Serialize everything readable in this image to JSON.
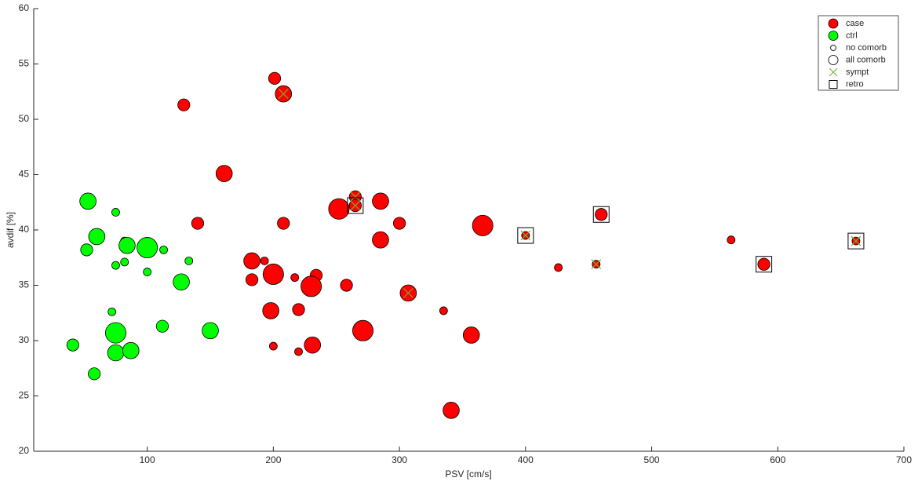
{
  "chart_data": {
    "type": "scatter",
    "xlabel": "PSV [cm/s]",
    "ylabel": "avdif [%]",
    "xlim": [
      10,
      700
    ],
    "ylim": [
      20,
      60
    ],
    "xticks": [
      100,
      200,
      300,
      400,
      500,
      600,
      700
    ],
    "yticks": [
      20,
      25,
      30,
      35,
      40,
      45,
      50,
      55,
      60
    ],
    "size_labels": [
      "no comorb",
      "all comorb"
    ],
    "series": [
      {
        "name": "case",
        "color": "#ff0000",
        "marker": "circle",
        "x": [
          201,
          208,
          129,
          161,
          265,
          285,
          252,
          265,
          140,
          208,
          300,
          366,
          460,
          400,
          285,
          563,
          662,
          183,
          193,
          426,
          456,
          589,
          200,
          183,
          217,
          234,
          230,
          258,
          307,
          198,
          220,
          335,
          271,
          357,
          231,
          200,
          220,
          341
        ],
        "values": [
          53.7,
          52.3,
          51.3,
          45.1,
          43.0,
          42.6,
          41.9,
          42.2,
          40.6,
          40.6,
          40.6,
          40.4,
          41.4,
          39.5,
          39.1,
          39.1,
          39.0,
          37.2,
          37.2,
          36.6,
          36.9,
          36.9,
          36.0,
          35.5,
          35.7,
          35.9,
          34.9,
          35.0,
          34.3,
          32.7,
          32.8,
          32.7,
          30.9,
          30.5,
          29.6,
          29.5,
          29.0,
          23.7
        ],
        "sizes": [
          1,
          2,
          1,
          2,
          1,
          2,
          3,
          1,
          1,
          1,
          1,
          3,
          1,
          0,
          2,
          0,
          0,
          2,
          0,
          0,
          0,
          1,
          3,
          1,
          0,
          1,
          3,
          1,
          2,
          2,
          1,
          0,
          3,
          2,
          2,
          0,
          0,
          2
        ]
      },
      {
        "name": "ctrl",
        "color": "#00ff00",
        "marker": "circle",
        "x": [
          53,
          75,
          60,
          82,
          84,
          100,
          52,
          113,
          133,
          82,
          75,
          100,
          127,
          72,
          112,
          150,
          75,
          75,
          87,
          41,
          58
        ],
        "values": [
          42.6,
          41.6,
          39.4,
          39.0,
          38.6,
          38.4,
          38.2,
          38.2,
          37.2,
          37.1,
          36.8,
          36.2,
          35.3,
          32.6,
          31.3,
          30.9,
          30.7,
          28.9,
          29.1,
          29.6,
          27.0
        ],
        "sizes": [
          2,
          0,
          2,
          0,
          2,
          3,
          1,
          0,
          0,
          0,
          0,
          0,
          2,
          0,
          1,
          2,
          3,
          2,
          2,
          1,
          1
        ]
      },
      {
        "name": "sympt",
        "color": "#77ac30",
        "marker": "x",
        "x": [
          208,
          265,
          265,
          400,
          662,
          456,
          307
        ],
        "values": [
          52.3,
          43.0,
          42.2,
          39.5,
          39.0,
          36.9,
          34.3
        ]
      },
      {
        "name": "retro",
        "color": "#000000",
        "marker": "square",
        "x": [
          265,
          460,
          400,
          662,
          589
        ],
        "values": [
          42.2,
          41.4,
          39.5,
          39.0,
          36.9
        ]
      }
    ]
  }
}
